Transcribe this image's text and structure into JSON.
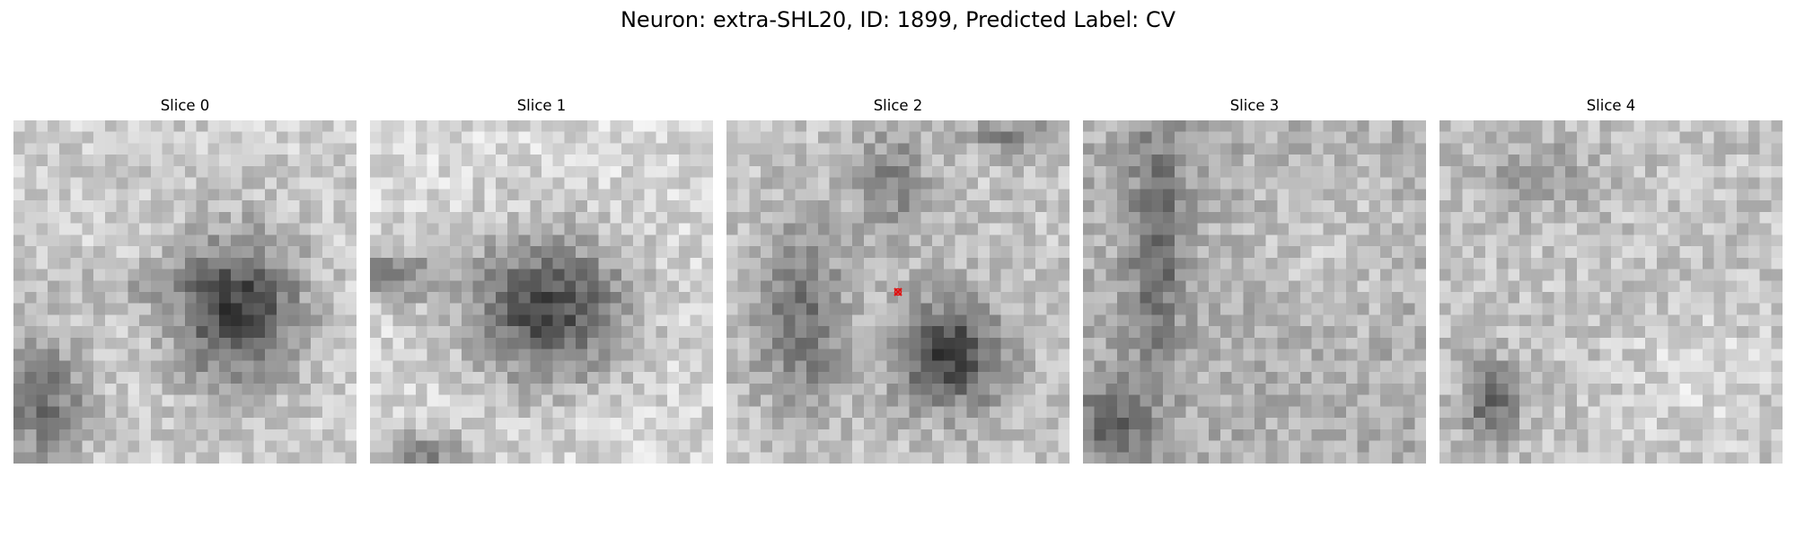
{
  "figure": {
    "title": "Neuron: extra-SHL20, ID: 1899, Predicted Label: CV"
  },
  "colormap": "gray",
  "marker_color": "#e01010",
  "slices": [
    {
      "title": "Slice 0"
    },
    {
      "title": "Slice 1"
    },
    {
      "title": "Slice 2"
    },
    {
      "title": "Slice 3"
    },
    {
      "title": "Slice 4"
    }
  ]
}
